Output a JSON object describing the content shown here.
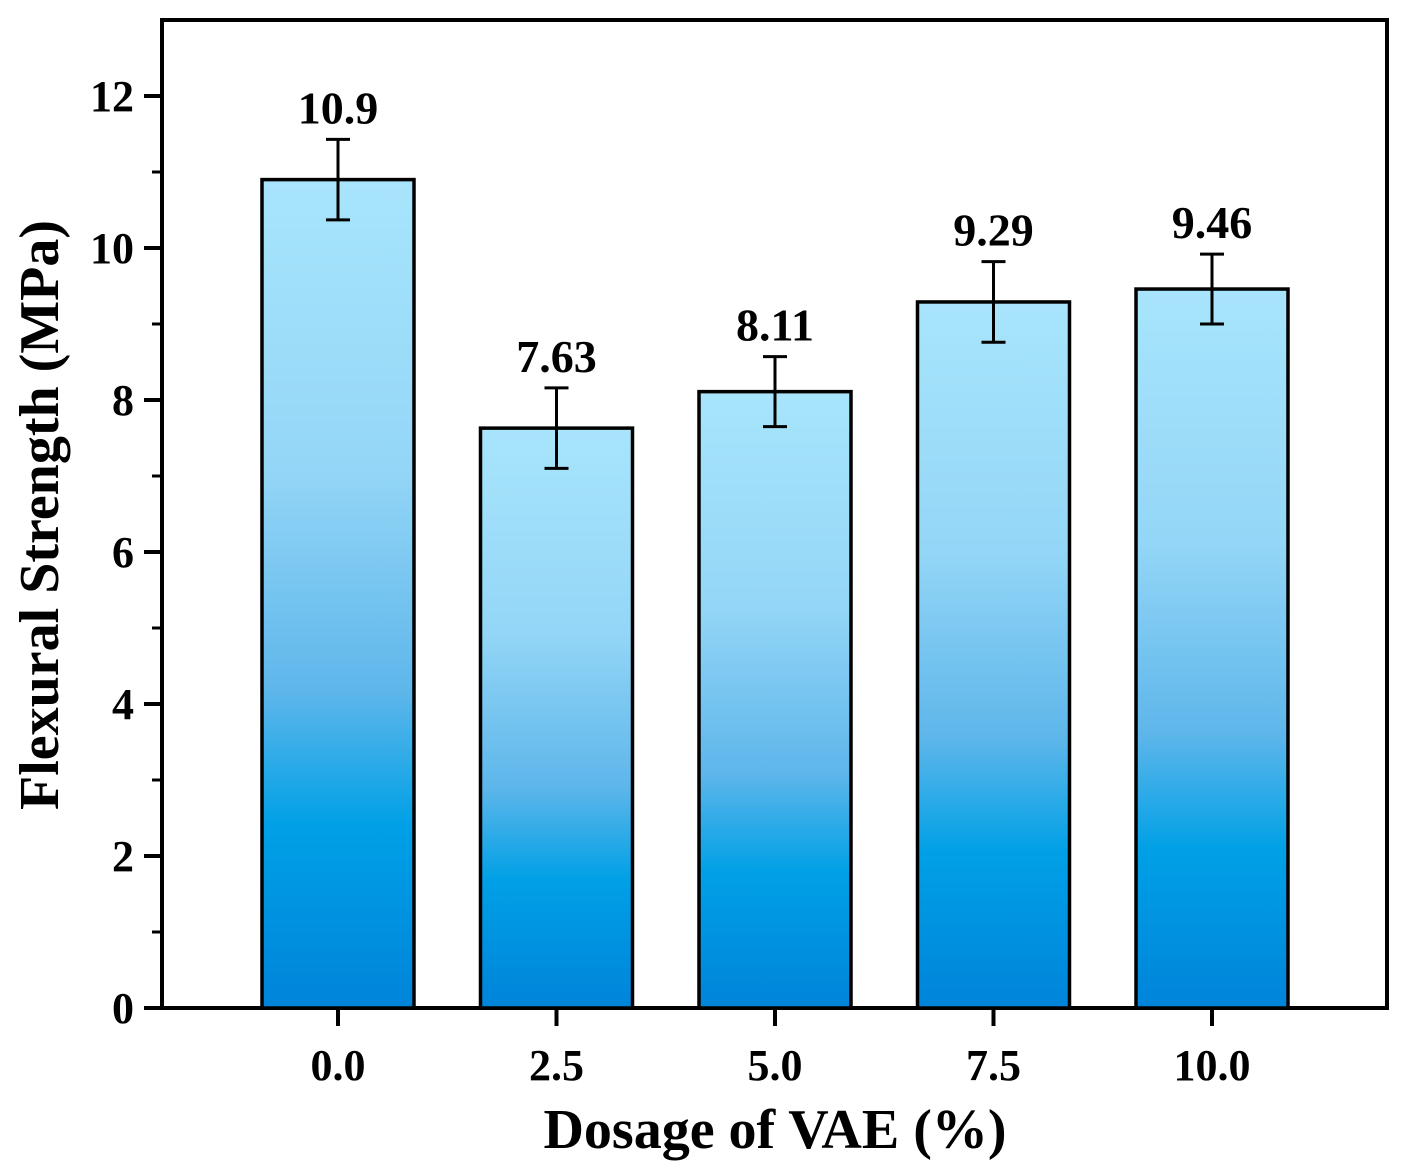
{
  "chart_data": {
    "type": "bar",
    "xlabel": "Dosage of VAE (%)",
    "ylabel": "Flexural Strength (MPa)",
    "categories": [
      "0.0",
      "2.5",
      "5.0",
      "7.5",
      "10.0"
    ],
    "values": [
      10.9,
      7.63,
      8.11,
      9.29,
      9.46
    ],
    "value_labels": [
      "10.9",
      "7.63",
      "8.11",
      "9.29",
      "9.46"
    ],
    "error": [
      0.53,
      0.53,
      0.46,
      0.53,
      0.46
    ],
    "ylim": [
      0,
      13
    ],
    "yticks": [
      0,
      2,
      4,
      6,
      8,
      10,
      12
    ],
    "ytick_labels": [
      "0",
      "2",
      "4",
      "6",
      "8",
      "10",
      "12"
    ],
    "grid": false,
    "legend": "none",
    "bar_gradient": [
      "#a6e4fb",
      "#97d6f7",
      "#62b8ea",
      "#00a0e6",
      "#0086dc"
    ]
  }
}
